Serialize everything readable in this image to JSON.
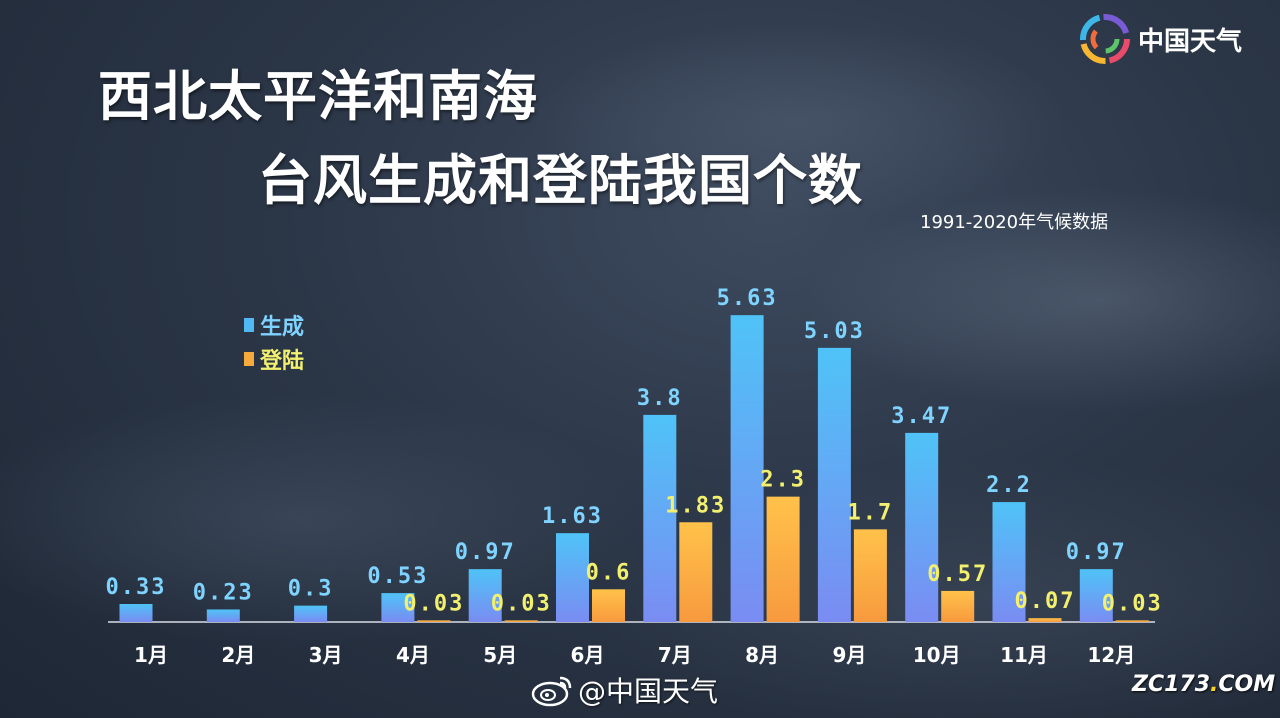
{
  "brand": {
    "name": "中国天气",
    "logo_icon": "china-weather-logo-icon"
  },
  "footer": {
    "watermark": "@中国天气",
    "watermark_icon": "weibo-icon",
    "site_pre": "ZC173",
    "site_dot": ".",
    "site_post": "COM"
  },
  "colors": {
    "formation": "#4fb8f5",
    "landing": "#f7a93b",
    "formation_label": "#7fd3ff",
    "landing_label": "#f2f06e"
  },
  "chart_data": {
    "type": "bar",
    "title": "西北太平洋和南海",
    "title_line2": "台风生成和登陆我国个数",
    "subtitle": "1991-2020年气候数据",
    "categories": [
      "1月",
      "2月",
      "3月",
      "4月",
      "5月",
      "6月",
      "7月",
      "8月",
      "9月",
      "10月",
      "11月",
      "12月"
    ],
    "series": [
      {
        "name": "生成",
        "values": [
          0.33,
          0.23,
          0.3,
          0.53,
          0.97,
          1.63,
          3.8,
          5.63,
          5.03,
          3.47,
          2.2,
          0.97
        ],
        "labels": [
          "0.33",
          "0.23",
          "0.3",
          "0.53",
          "0.97",
          "1.63",
          "3.8",
          "5.63",
          "5.03",
          "3.47",
          "2.2",
          "0.97"
        ]
      },
      {
        "name": "登陆",
        "values": [
          null,
          null,
          null,
          0.03,
          0.03,
          0.6,
          1.83,
          2.3,
          1.7,
          0.57,
          0.07,
          0.03
        ],
        "labels": [
          "",
          "",
          "",
          "0.03",
          "0.03",
          "0.6",
          "1.83",
          "2.3",
          "1.7",
          "0.57",
          "0.07",
          "0.03"
        ]
      }
    ],
    "ylim": [
      0,
      6
    ],
    "grid": false,
    "legend_position": "top-left"
  }
}
